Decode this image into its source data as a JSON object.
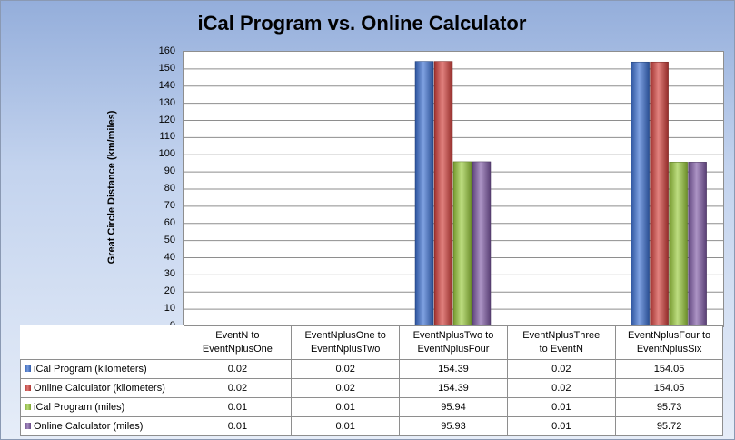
{
  "chart_data": {
    "type": "bar",
    "title": "iCal Program vs. Online Calculator",
    "xlabel": "",
    "ylabel": "Great Circle Distance  (km/miles)",
    "ylim": [
      0,
      160
    ],
    "yticks": [
      "0",
      "10",
      "20",
      "30",
      "40",
      "50",
      "60",
      "70",
      "80",
      "90",
      "100",
      "110",
      "120",
      "130",
      "140",
      "150",
      "160"
    ],
    "grid": true,
    "legend": "data table",
    "categories": [
      [
        "EventN to",
        "EventNplusOne"
      ],
      [
        "EventNplusOne to",
        "EventNplusTwo"
      ],
      [
        "EventNplusTwo to",
        "EventNplusFour"
      ],
      [
        "EventNplusThree",
        "to EventN"
      ],
      [
        "EventNplusFour to",
        "EventNplusSix"
      ]
    ],
    "series": [
      {
        "name": "iCal Program (kilometers)",
        "color": "#3a6fd1",
        "values": [
          0.02,
          0.02,
          154.39,
          0.02,
          154.05
        ],
        "labels": [
          "0.02",
          "0.02",
          "154.39",
          "0.02",
          "154.05"
        ]
      },
      {
        "name": "Online Calculator (kilometers)",
        "color": "#d23f3a",
        "values": [
          0.02,
          0.02,
          154.39,
          0.02,
          154.05
        ],
        "labels": [
          "0.02",
          "0.02",
          "154.39",
          "0.02",
          "154.05"
        ]
      },
      {
        "name": "iCal Program (miles)",
        "color": "#9acb3c",
        "values": [
          0.01,
          0.01,
          95.94,
          0.01,
          95.73
        ],
        "labels": [
          "0.01",
          "0.01",
          "95.94",
          "0.01",
          "95.73"
        ]
      },
      {
        "name": "Online Calculator (miles)",
        "color": "#7f5aa6",
        "values": [
          0.01,
          0.01,
          95.93,
          0.01,
          95.72
        ],
        "labels": [
          "0.01",
          "0.01",
          "95.93",
          "0.01",
          "95.72"
        ]
      }
    ]
  }
}
